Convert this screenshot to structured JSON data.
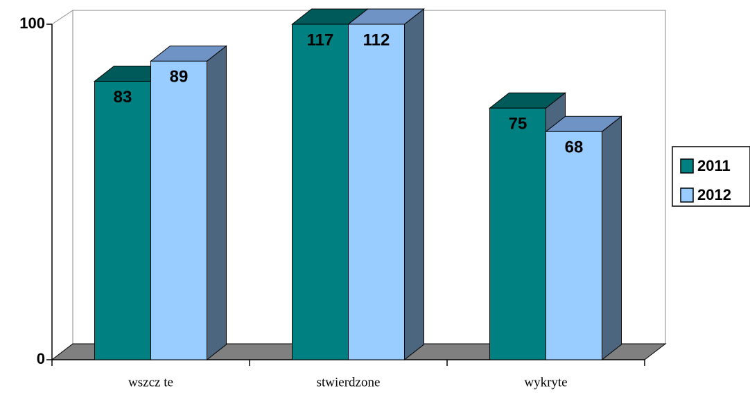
{
  "chart_data": {
    "type": "bar3d",
    "categories": [
      "wszcz te",
      "stwierdzone",
      "wykryte"
    ],
    "series": [
      {
        "name": "2011",
        "color": "#008080",
        "values": [
          83,
          117,
          75
        ]
      },
      {
        "name": "2012",
        "color": "#99ccff",
        "values": [
          89,
          112,
          68
        ]
      }
    ],
    "ylim": [
      0,
      100
    ],
    "yticks": [
      0,
      100
    ],
    "legend": "right"
  }
}
